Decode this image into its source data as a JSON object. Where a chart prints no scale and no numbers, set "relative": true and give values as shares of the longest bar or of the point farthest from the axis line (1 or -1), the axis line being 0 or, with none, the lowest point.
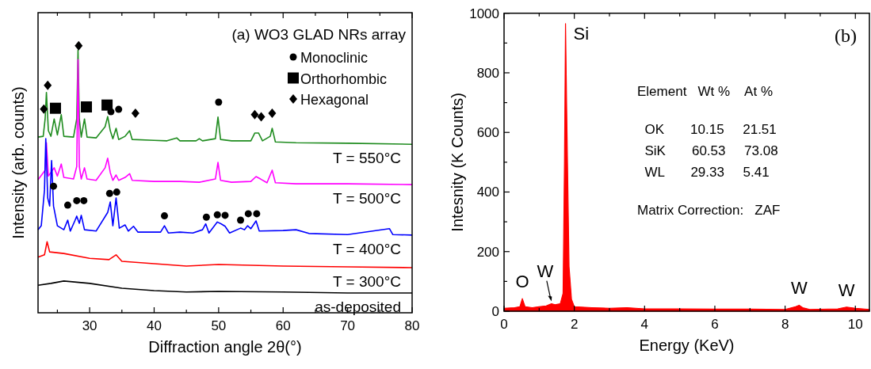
{
  "chart_data": [
    {
      "type": "line",
      "title": "(a) WO3 GLAD NRs array",
      "xlabel": "Diffraction angle 2θ(°)",
      "ylabel": "Intensity (arb. counts)",
      "relative": true,
      "xlim": [
        22,
        80
      ],
      "xticks": [
        {
          "value": 25,
          "label": null
        },
        30,
        {
          "value": 35,
          "label": null
        },
        40,
        {
          "value": 45,
          "label": null
        },
        50,
        {
          "value": 55,
          "label": null
        },
        60,
        {
          "value": 65,
          "label": null
        },
        70,
        {
          "value": 75,
          "label": null
        },
        80
      ],
      "tick_labels": "x",
      "legend": "top right",
      "grid": false,
      "series": [
        {
          "name": "T = 550°C",
          "color": "#1f8c1f",
          "x": [
            22,
            22.8,
            23.1,
            23.3,
            23.6,
            24.0,
            24.5,
            25.0,
            25.6,
            26.0,
            27.5,
            28.0,
            28.2,
            28.4,
            28.7,
            29.2,
            29.6,
            31,
            32.4,
            32.8,
            33.2,
            33.6,
            34.1,
            34.5,
            35.5,
            36.2,
            36.6,
            40,
            42,
            43.5,
            44,
            46.5,
            47,
            47.5,
            49.5,
            49.9,
            50.3,
            52,
            55,
            55.6,
            56.2,
            56.8,
            58.0,
            58.3,
            58.8,
            62,
            70,
            80
          ],
          "values": [
            0.658,
            0.661,
            0.726,
            0.825,
            0.682,
            0.661,
            0.726,
            0.666,
            0.742,
            0.661,
            0.658,
            0.726,
            0.984,
            0.726,
            0.658,
            0.726,
            0.658,
            0.655,
            0.697,
            0.735,
            0.682,
            0.652,
            0.691,
            0.649,
            0.661,
            0.682,
            0.649,
            0.646,
            0.644,
            0.655,
            0.644,
            0.644,
            0.652,
            0.644,
            0.652,
            0.733,
            0.649,
            0.644,
            0.644,
            0.673,
            0.673,
            0.644,
            0.661,
            0.691,
            0.64,
            0.637,
            0.635,
            0.631
          ]
        },
        {
          "name": "T = 500°C",
          "color": "#ff00ff",
          "x": [
            22,
            23.1,
            23.3,
            23.6,
            24.5,
            25,
            25.6,
            26,
            27.5,
            28.0,
            28.2,
            28.4,
            28.7,
            29.2,
            29.6,
            31,
            32.4,
            32.8,
            33.2,
            33.6,
            34.1,
            34.5,
            35.5,
            36.2,
            36.6,
            40,
            42,
            44,
            47,
            49.5,
            49.9,
            50.3,
            52,
            55,
            55.8,
            56.5,
            57.5,
            58.3,
            58.8,
            62,
            70,
            80
          ],
          "values": [
            0.498,
            0.534,
            0.637,
            0.512,
            0.543,
            0.512,
            0.557,
            0.507,
            0.501,
            0.548,
            0.948,
            0.548,
            0.501,
            0.543,
            0.501,
            0.496,
            0.543,
            0.579,
            0.525,
            0.496,
            0.516,
            0.496,
            0.507,
            0.521,
            0.496,
            0.492,
            0.492,
            0.492,
            0.489,
            0.501,
            0.563,
            0.496,
            0.489,
            0.492,
            0.51,
            0.501,
            0.487,
            0.534,
            0.487,
            0.483,
            0.483,
            0.48
          ]
        },
        {
          "name": "T = 400°C",
          "color": "#0000ff",
          "x": [
            22,
            22.5,
            23.0,
            23.2,
            23.5,
            23.8,
            24.1,
            24.4,
            25,
            26,
            26.6,
            27,
            27.7,
            28.0,
            28.4,
            28.7,
            29.2,
            31,
            32.8,
            33.2,
            33.6,
            34.1,
            34.6,
            35.5,
            36,
            36.8,
            37.5,
            41,
            41.6,
            42.2,
            44,
            46,
            47.5,
            48,
            48.5,
            49.8,
            50.4,
            51,
            51.7,
            53.4,
            54,
            54.5,
            55,
            55.8,
            56.3,
            60,
            62,
            64,
            70,
            76.5,
            77,
            80
          ],
          "values": [
            0.311,
            0.326,
            0.46,
            0.652,
            0.43,
            0.4,
            0.57,
            0.4,
            0.326,
            0.311,
            0.347,
            0.306,
            0.344,
            0.362,
            0.335,
            0.365,
            0.311,
            0.306,
            0.376,
            0.415,
            0.326,
            0.43,
            0.317,
            0.329,
            0.306,
            0.324,
            0.302,
            0.302,
            0.326,
            0.299,
            0.302,
            0.299,
            0.311,
            0.333,
            0.299,
            0.34,
            0.333,
            0.324,
            0.299,
            0.317,
            0.311,
            0.326,
            0.315,
            0.344,
            0.306,
            0.308,
            0.311,
            0.297,
            0.293,
            0.315,
            0.293,
            0.291
          ]
        },
        {
          "name": "T = 300°C",
          "color": "#ff0000",
          "x": [
            22,
            23,
            23.4,
            23.8,
            26,
            30,
            33,
            34.1,
            35,
            40,
            45,
            50,
            55,
            60,
            70,
            80
          ],
          "values": [
            0.208,
            0.217,
            0.266,
            0.228,
            0.222,
            0.204,
            0.199,
            0.217,
            0.193,
            0.184,
            0.175,
            0.181,
            0.178,
            0.175,
            0.172,
            0.169
          ]
        },
        {
          "name": "as-deposited",
          "color": "#000000",
          "x": [
            22,
            24,
            26,
            30,
            35,
            40,
            45,
            50,
            60,
            70,
            80
          ],
          "values": [
            0.103,
            0.11,
            0.119,
            0.11,
            0.092,
            0.083,
            0.078,
            0.08,
            0.078,
            0.074,
            0.074
          ]
        },
        {
          "type": "scatter",
          "name": "Monoclinic",
          "marker": "circle",
          "color": "#000000",
          "x": [
            33.3,
            34.5,
            50.0,
            24.4,
            26.6,
            28.0,
            29.1,
            33.1,
            34.2,
            41.6,
            48.1,
            49.8,
            51.0,
            53.4,
            54.6,
            55.9
          ],
          "values": [
            0.753,
            0.762,
            0.789,
            0.474,
            0.403,
            0.42,
            0.42,
            0.447,
            0.452,
            0.363,
            0.358,
            0.367,
            0.365,
            0.347,
            0.371,
            0.371
          ]
        },
        {
          "type": "scatter",
          "name": "Orthorhombic",
          "marker": "square",
          "color": "#000000",
          "x": [
            24.7,
            29.5,
            32.7
          ],
          "values": [
            0.766,
            0.771,
            0.778
          ]
        },
        {
          "type": "scatter",
          "name": "Hexagonal",
          "marker": "diamond",
          "color": "#000000",
          "x": [
            22.9,
            23.5,
            28.3,
            37.1,
            55.6,
            56.6,
            58.3
          ],
          "values": [
            0.763,
            0.852,
            1,
            0.747,
            0.742,
            0.734,
            0.747
          ]
        }
      ]
    },
    {
      "type": "area",
      "title": "(b)",
      "xlabel": "Energy (KeV)",
      "ylabel": "Intesnity (K Counts)",
      "xlim": [
        0,
        10.4
      ],
      "ylim": [
        0,
        1000
      ],
      "xticks": [
        0,
        {
          "value": 1,
          "label": null
        },
        2,
        {
          "value": 3,
          "label": null
        },
        4,
        {
          "value": 5,
          "label": null
        },
        6,
        {
          "value": 7,
          "label": null
        },
        8,
        {
          "value": 9,
          "label": null
        },
        10
      ],
      "yticks": [
        0,
        {
          "value": 100,
          "label": null
        },
        200,
        {
          "value": 300,
          "label": null
        },
        400,
        {
          "value": 500,
          "label": null
        },
        600,
        {
          "value": 700,
          "label": null
        },
        800,
        {
          "value": 900,
          "label": null
        },
        1000
      ],
      "grid": false,
      "series": [
        {
          "color": "#ff0000",
          "x": [
            0,
            0.3,
            0.45,
            0.52,
            0.6,
            0.8,
            1.0,
            1.2,
            1.35,
            1.45,
            1.6,
            1.68,
            1.72,
            1.75,
            1.78,
            1.85,
            1.92,
            2.0,
            2.5,
            3,
            3.5,
            4,
            5,
            6,
            7,
            8,
            8.3,
            8.4,
            8.5,
            8.7,
            9.5,
            9.75,
            10,
            10.4
          ],
          "values": [
            10,
            12,
            15,
            42,
            15,
            12,
            15,
            18,
            25,
            22,
            25,
            60,
            500,
            965,
            700,
            150,
            40,
            15,
            12,
            10,
            12,
            8,
            8,
            7,
            7,
            6,
            15,
            20,
            12,
            6,
            8,
            14,
            10,
            6
          ]
        }
      ],
      "annotations": [
        {
          "text": "Si",
          "x": 1.75,
          "y": 965
        },
        {
          "text": "O",
          "x": 0.52,
          "y": 42
        },
        {
          "text": "W",
          "x": 1.35,
          "y": 25
        },
        {
          "text": "W",
          "x": 8.4,
          "y": 20
        },
        {
          "text": "W",
          "x": 9.75,
          "y": 14
        },
        "Element   Wt %    At %",
        "  OK       10.15     21.51",
        "  SiK       60.53     73.08",
        "  WL       29.33     5.41",
        "Matrix Correction:   ZAF"
      ]
    }
  ]
}
